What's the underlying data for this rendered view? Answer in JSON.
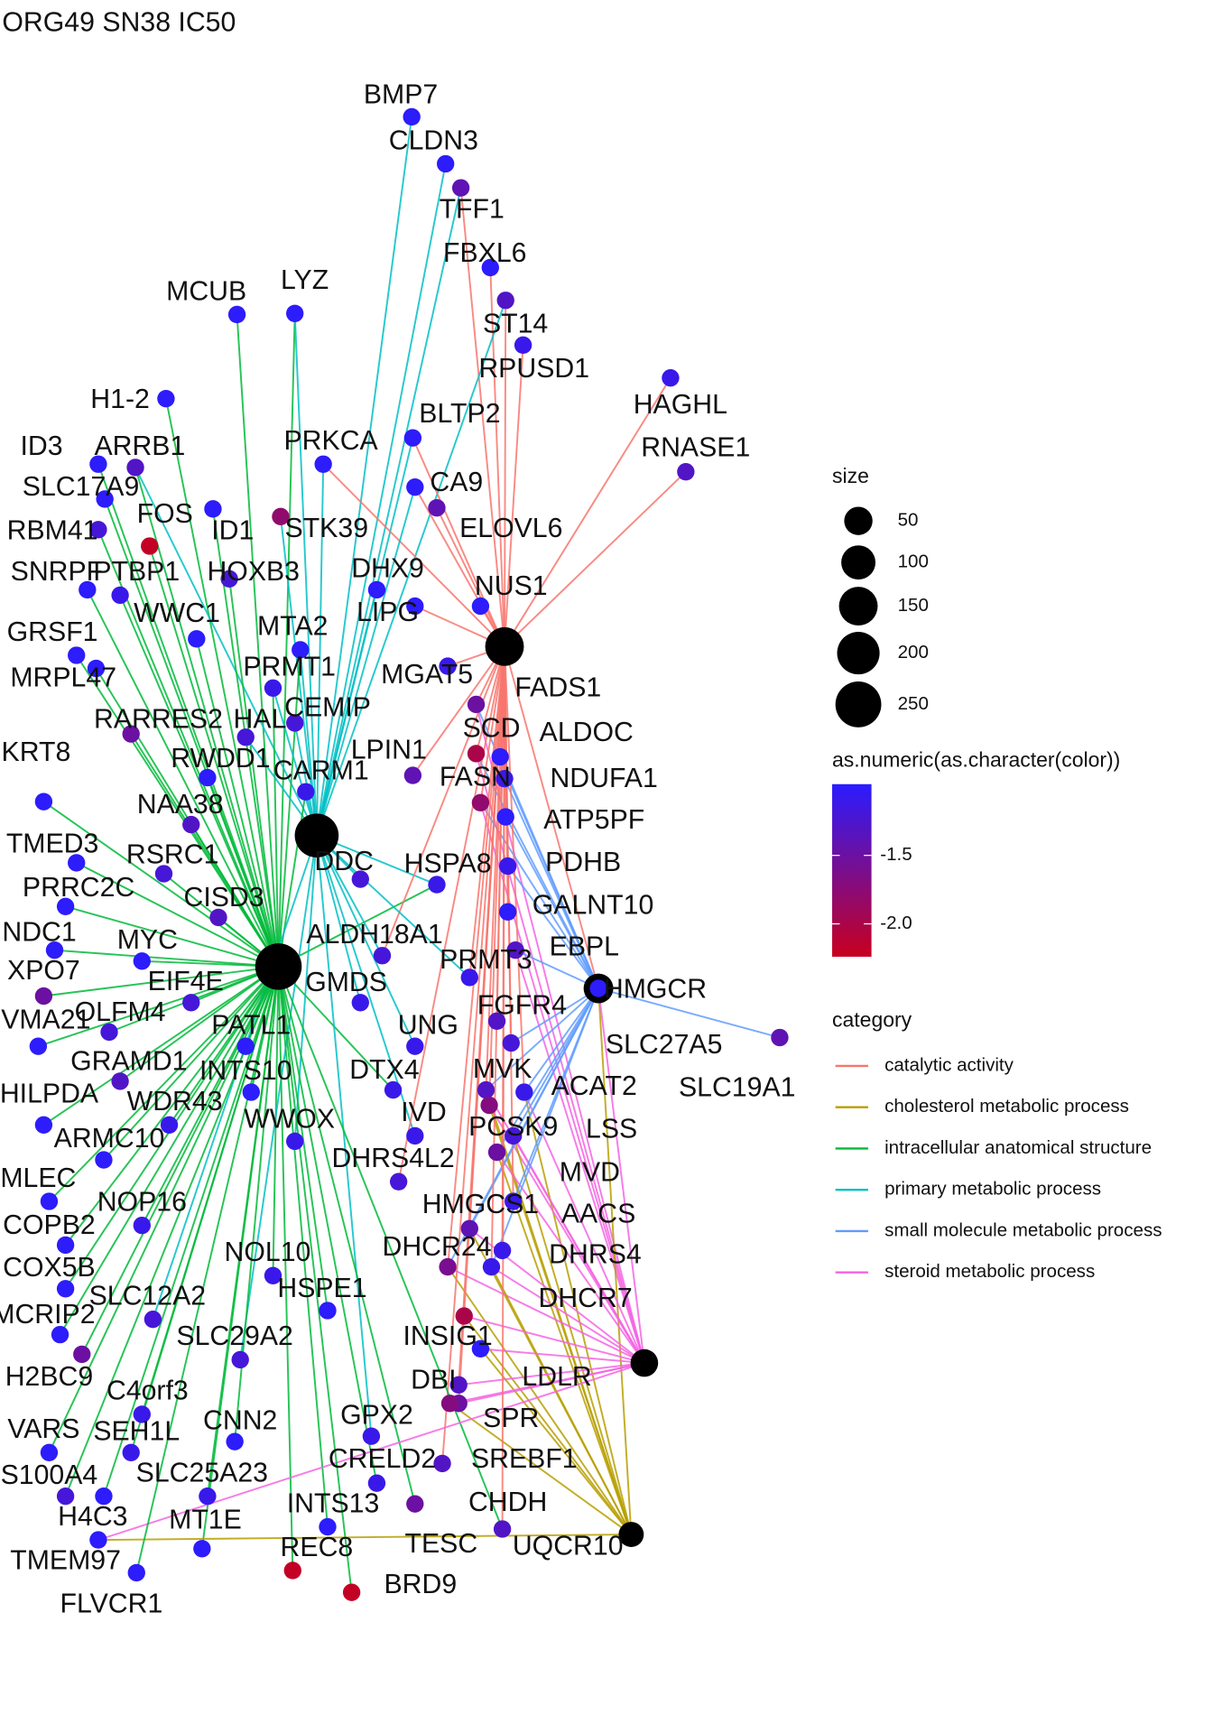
{
  "chart_data": {
    "type": "network",
    "title": "ORG49 SN38 IC50",
    "size_title": "size",
    "size_breaks": [
      50,
      100,
      150,
      200,
      250
    ],
    "color_title": "as.numeric(as.character(color))",
    "color_low": "#c8001e",
    "color_high": "#2a1cff",
    "color_lim": [
      -2.24,
      -0.98
    ],
    "color_ticks": [
      -1.5,
      {
        "value": -2,
        "label": "-2.0"
      }
    ],
    "category_title": "category",
    "categories": [
      {
        "name": "catalytic activity",
        "color": "#f8766d",
        "size": 150
      },
      {
        "name": "cholesterol metabolic process",
        "color": "#b79f00",
        "size": 30
      },
      {
        "name": "intracellular anatomical structure",
        "color": "#00ba38",
        "size": 260
      },
      {
        "name": "primary metabolic process",
        "color": "#00bfc4",
        "size": 220
      },
      {
        "name": "small molecule metabolic process",
        "color": "#619cff",
        "size": 60
      },
      {
        "name": "steroid metabolic process",
        "color": "#f564e3",
        "size": 45
      }
    ],
    "nodes": [
      {
        "label": "BMP7",
        "value": -1.0,
        "links": [
          3
        ]
      },
      {
        "label": "CLDN3",
        "value": -1.0,
        "links": [
          3
        ]
      },
      {
        "label": "TFF1",
        "value": -1.4,
        "links": [
          3,
          0
        ]
      },
      {
        "label": "FBXL6",
        "value": -1.0,
        "links": [
          0
        ]
      },
      {
        "label": "ST14",
        "value": -1.3,
        "links": [
          3,
          0
        ]
      },
      {
        "label": "RPUSD1",
        "value": -1.1,
        "links": [
          0
        ]
      },
      {
        "label": "HAGHL",
        "value": -1.1,
        "links": [
          0
        ]
      },
      {
        "label": "RNASE1",
        "value": -1.3,
        "links": [
          0
        ]
      },
      {
        "label": "MCUB",
        "value": -1.0,
        "links": [
          2
        ]
      },
      {
        "label": "LYZ",
        "value": -1.0,
        "links": [
          2,
          3
        ]
      },
      {
        "label": "H1-2",
        "value": -1.0,
        "links": [
          2
        ]
      },
      {
        "label": "BLTP2",
        "value": -1.0,
        "links": [
          3,
          0
        ]
      },
      {
        "label": "ID3",
        "value": -1.0,
        "links": [
          2
        ]
      },
      {
        "label": "ARRB1",
        "value": -1.3,
        "links": [
          2,
          3
        ]
      },
      {
        "label": "PRKCA",
        "value": -1.0,
        "links": [
          3,
          0
        ]
      },
      {
        "label": "SLC17A9",
        "value": -1.0,
        "links": [
          2
        ]
      },
      {
        "label": "CA9",
        "value": -1.0,
        "links": [
          3,
          0
        ]
      },
      {
        "label": "FOS",
        "value": -2.2,
        "links": [
          2
        ]
      },
      {
        "label": "ID1",
        "value": -1.0,
        "links": [
          2
        ]
      },
      {
        "label": "STK39",
        "value": -1.8,
        "links": [
          3
        ]
      },
      {
        "label": "ELOVL6",
        "value": -1.4,
        "links": [
          0
        ]
      },
      {
        "label": "RBM41",
        "value": -1.2,
        "links": [
          2
        ]
      },
      {
        "label": "SNRPF",
        "value": -1.0,
        "links": [
          2
        ]
      },
      {
        "label": "PTBP1",
        "value": -1.1,
        "links": [
          2
        ]
      },
      {
        "label": "HOXB3",
        "value": -1.2,
        "links": [
          2
        ]
      },
      {
        "label": "DHX9",
        "value": -1.0,
        "links": [
          3
        ]
      },
      {
        "label": "NUS1",
        "value": -1.0,
        "links": [
          0
        ]
      },
      {
        "label": "WWC1",
        "value": -1.0,
        "links": [
          2
        ]
      },
      {
        "label": "GRSF1",
        "value": -1.0,
        "links": [
          2
        ]
      },
      {
        "label": "MTA2",
        "value": -1.0,
        "links": [
          2,
          3
        ]
      },
      {
        "label": "LIPG",
        "value": -1.0,
        "links": [
          0
        ]
      },
      {
        "label": "PRMT1",
        "value": -1.1,
        "links": [
          2,
          3
        ]
      },
      {
        "label": "MGAT5",
        "value": -1.1,
        "links": [
          0
        ]
      },
      {
        "label": "FADS1",
        "value": -1.5,
        "links": [
          0,
          4,
          5
        ]
      },
      {
        "label": "MRPL47",
        "value": -1.0,
        "links": [
          2
        ]
      },
      {
        "label": "CEMIP",
        "value": -1.2,
        "links": [
          3
        ]
      },
      {
        "label": "RARRES2",
        "value": -1.5,
        "links": [
          2
        ]
      },
      {
        "label": "HAL",
        "value": -1.2,
        "links": [
          3
        ]
      },
      {
        "label": "SCD",
        "value": -2.0,
        "links": [
          0,
          4,
          5
        ]
      },
      {
        "label": "ALDOC",
        "value": -1.0,
        "links": [
          0,
          4
        ]
      },
      {
        "label": "KRT8",
        "value": -1.0,
        "links": [
          2
        ]
      },
      {
        "label": "RWDD1",
        "value": -1.0,
        "links": [
          2
        ]
      },
      {
        "label": "LPIN1",
        "value": -1.4,
        "links": [
          0
        ]
      },
      {
        "label": "CARM1",
        "value": -1.1,
        "links": [
          2,
          3
        ]
      },
      {
        "label": "FASN",
        "value": -1.8,
        "links": [
          0,
          4,
          5
        ]
      },
      {
        "label": "NDUFA1",
        "value": -1.1,
        "links": [
          0,
          4
        ]
      },
      {
        "label": "NAA38",
        "value": -1.3,
        "links": [
          2
        ]
      },
      {
        "label": "ATP5PF",
        "value": -1.0,
        "links": [
          0,
          4
        ]
      },
      {
        "label": "TMED3",
        "value": -1.0,
        "links": [
          2
        ]
      },
      {
        "label": "RSRC1",
        "value": -1.2,
        "links": [
          2
        ]
      },
      {
        "label": "DDC",
        "value": -1.2,
        "links": [
          3
        ]
      },
      {
        "label": "HSPA8",
        "value": -1.1,
        "links": [
          2,
          3
        ]
      },
      {
        "label": "PDHB",
        "value": -1.1,
        "links": [
          0,
          4
        ]
      },
      {
        "label": "PRRC2C",
        "value": -1.0,
        "links": [
          2
        ]
      },
      {
        "label": "GALNT10",
        "value": -1.0,
        "links": [
          0
        ]
      },
      {
        "label": "CISD3",
        "value": -1.3,
        "links": [
          2
        ]
      },
      {
        "label": "NDC1",
        "value": -1.0,
        "links": [
          2
        ]
      },
      {
        "label": "MYC",
        "value": -1.0,
        "links": [
          2
        ]
      },
      {
        "label": "ALDH18A1",
        "value": -1.2,
        "links": [
          3,
          0
        ]
      },
      {
        "label": "EBPL",
        "value": -1.3,
        "links": [
          4,
          5
        ]
      },
      {
        "label": "PRMT3",
        "value": -1.1,
        "links": [
          3,
          0
        ]
      },
      {
        "label": "XPO7",
        "value": -1.5,
        "links": [
          2
        ]
      },
      {
        "label": "EIF4E",
        "value": -1.2,
        "links": [
          2
        ]
      },
      {
        "label": "GMDS",
        "value": -1.1,
        "links": [
          3
        ]
      },
      {
        "label": "HMGCR",
        "value": -1.0,
        "links": [
          0,
          1,
          4,
          5
        ]
      },
      {
        "label": "OLFM4",
        "value": -1.2,
        "links": [
          2
        ]
      },
      {
        "label": "FGFR4",
        "value": -1.3,
        "links": [
          0
        ]
      },
      {
        "label": "VMA21",
        "value": -1.0,
        "links": [
          2
        ]
      },
      {
        "label": "PATL1",
        "value": -1.0,
        "links": [
          2
        ]
      },
      {
        "label": "UNG",
        "value": -1.1,
        "links": [
          3
        ]
      },
      {
        "label": "SLC27A5",
        "value": -1.2,
        "links": [
          0,
          4
        ]
      },
      {
        "label": "SLC19A1",
        "value": -1.4,
        "links": [
          4
        ]
      },
      {
        "label": "GRAMD1",
        "value": -1.3,
        "links": [
          2
        ]
      },
      {
        "label": "INTS10",
        "value": -1.0,
        "links": [
          2
        ]
      },
      {
        "label": "DTX4",
        "value": -1.1,
        "links": [
          2
        ]
      },
      {
        "label": "MVK",
        "value": -1.3,
        "links": [
          0,
          1,
          4,
          5
        ]
      },
      {
        "label": "HILPDA",
        "value": -1.0,
        "links": [
          2
        ]
      },
      {
        "label": "WDR43",
        "value": -1.1,
        "links": [
          2
        ]
      },
      {
        "label": "ACAT2",
        "value": -1.1,
        "links": [
          0,
          1,
          4,
          5
        ]
      },
      {
        "label": "WWOX",
        "value": -1.1,
        "links": [
          3
        ]
      },
      {
        "label": "IVD",
        "value": -1.1,
        "links": [
          3
        ]
      },
      {
        "label": "PCSK9",
        "value": -1.7,
        "links": [
          0,
          1,
          5
        ]
      },
      {
        "label": "LSS",
        "value": -1.2,
        "links": [
          1,
          4,
          5
        ]
      },
      {
        "label": "ARMC10",
        "value": -1.0,
        "links": [
          2
        ]
      },
      {
        "label": "MLEC",
        "value": -1.0,
        "links": [
          2
        ]
      },
      {
        "label": "DHRS4L2",
        "value": -1.2,
        "links": [
          0
        ]
      },
      {
        "label": "MVD",
        "value": -1.5,
        "links": [
          1,
          4,
          5
        ]
      },
      {
        "label": "COPB2",
        "value": -1.0,
        "links": [
          2
        ]
      },
      {
        "label": "NOP16",
        "value": -1.1,
        "links": [
          2
        ]
      },
      {
        "label": "HMGCS1",
        "value": -1.4,
        "links": [
          0,
          1,
          4,
          5
        ]
      },
      {
        "label": "AACS",
        "value": -1.1,
        "links": [
          0,
          4
        ]
      },
      {
        "label": "COX5B",
        "value": -1.0,
        "links": [
          2
        ]
      },
      {
        "label": "NOL10",
        "value": -1.1,
        "links": [
          2
        ]
      },
      {
        "label": "DHCR24",
        "value": -1.6,
        "links": [
          0,
          1,
          4,
          5
        ]
      },
      {
        "label": "DHRS4",
        "value": -1.1,
        "links": [
          0
        ]
      },
      {
        "label": "SLC12A2",
        "value": -1.2,
        "links": [
          3
        ]
      },
      {
        "label": "HSPE1",
        "value": -1.0,
        "links": [
          2
        ]
      },
      {
        "label": "DHCR7",
        "value": -1.1,
        "links": [
          0,
          1,
          4,
          5
        ]
      },
      {
        "label": "MCRIP2",
        "value": -1.0,
        "links": [
          2
        ]
      },
      {
        "label": "INSIG1",
        "value": -2.0,
        "links": [
          1,
          5
        ]
      },
      {
        "label": "SLC29A2",
        "value": -1.2,
        "links": [
          3
        ]
      },
      {
        "label": "LDLR",
        "value": -1.0,
        "links": [
          1,
          5
        ]
      },
      {
        "label": "H2BC9",
        "value": -1.5,
        "links": [
          2
        ]
      },
      {
        "label": "DBI",
        "value": -1.3,
        "links": [
          0,
          5
        ]
      },
      {
        "label": "C4orf3",
        "value": -1.1,
        "links": [
          2
        ]
      },
      {
        "label": "GPX2",
        "value": -1.1,
        "links": [
          3
        ]
      },
      {
        "label": "SPR",
        "value": -1.5,
        "links": [
          0,
          5
        ]
      },
      {
        "label": "VARS",
        "value": -1.0,
        "links": [
          2
        ]
      },
      {
        "label": "SEH1L",
        "value": -1.1,
        "links": [
          2
        ]
      },
      {
        "label": "CNN2",
        "value": -1.0,
        "links": [
          2
        ]
      },
      {
        "label": "SREBF1",
        "value": -1.7,
        "links": [
          1,
          5
        ]
      },
      {
        "label": "CRELD2",
        "value": -1.1,
        "links": [
          2
        ]
      },
      {
        "label": "S100A4",
        "value": -1.2,
        "links": [
          2
        ]
      },
      {
        "label": "SLC25A23",
        "value": -1.1,
        "links": [
          2
        ]
      },
      {
        "label": "CHDH",
        "value": -1.3,
        "links": [
          0
        ]
      },
      {
        "label": "INTS13",
        "value": -1.0,
        "links": [
          2
        ]
      },
      {
        "label": "H4C3",
        "value": -1.0,
        "links": [
          2
        ]
      },
      {
        "label": "MT1E",
        "value": -1.0,
        "links": [
          2
        ]
      },
      {
        "label": "TESC",
        "value": -1.5,
        "links": [
          2
        ]
      },
      {
        "label": "UQCR10",
        "value": -1.3,
        "links": [
          0,
          2
        ]
      },
      {
        "label": "REC8",
        "value": -2.2,
        "links": [
          2
        ]
      },
      {
        "label": "TMEM97",
        "value": -1.0,
        "links": [
          1,
          5
        ]
      },
      {
        "label": "BRD9",
        "value": -2.2,
        "links": [
          2
        ]
      },
      {
        "label": "FLVCR1",
        "value": -1.0,
        "links": [
          2
        ]
      }
    ]
  }
}
